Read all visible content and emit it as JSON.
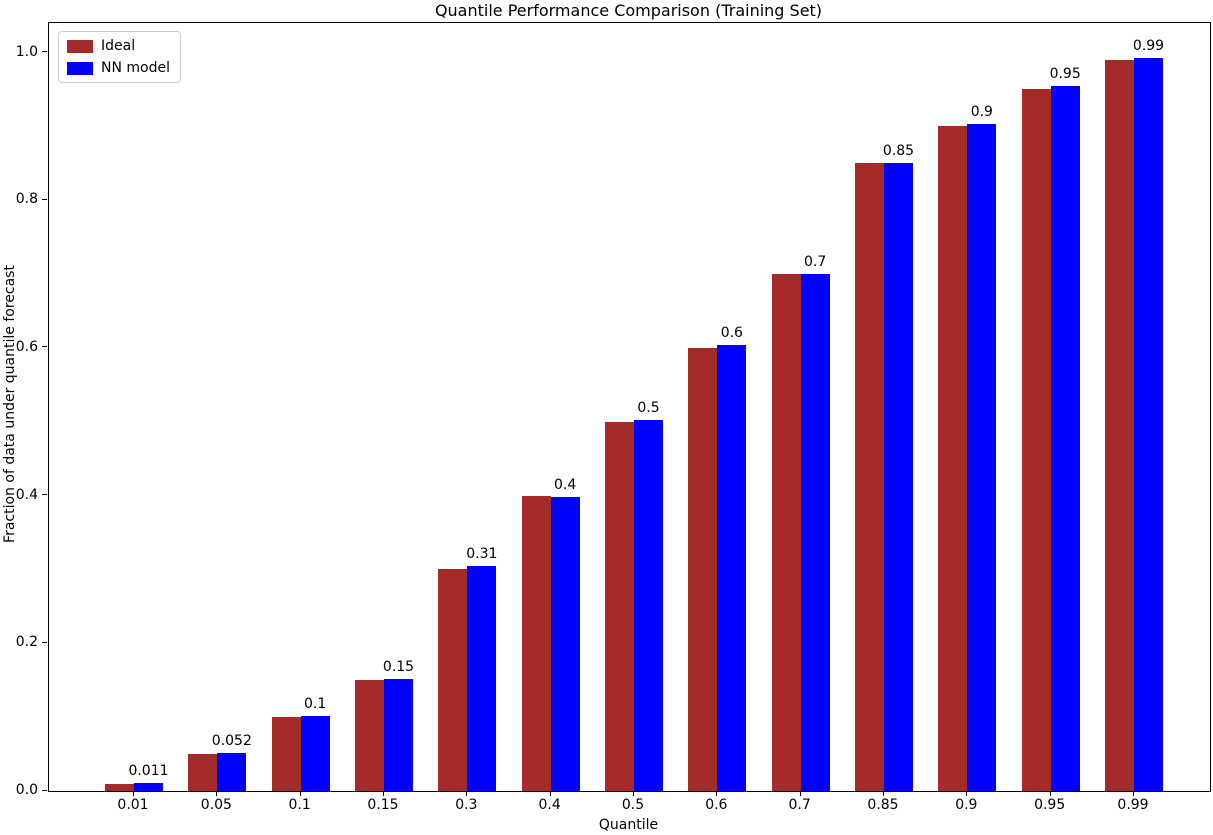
{
  "chart_data": {
    "type": "bar",
    "title": "Quantile Performance Comparison (Training Set)",
    "xlabel": "Quantile",
    "ylabel": "Fraction of data under quantile forecast",
    "categories": [
      "0.01",
      "0.05",
      "0.1",
      "0.15",
      "0.3",
      "0.4",
      "0.5",
      "0.6",
      "0.7",
      "0.85",
      "0.9",
      "0.95",
      "0.99"
    ],
    "series": [
      {
        "name": "Ideal",
        "color": "#a52a2a",
        "values": [
          0.01,
          0.05,
          0.1,
          0.15,
          0.3,
          0.4,
          0.5,
          0.6,
          0.7,
          0.85,
          0.9,
          0.95,
          0.99
        ]
      },
      {
        "name": "NN model",
        "color": "#0000ff",
        "values": [
          0.011,
          0.052,
          0.102,
          0.152,
          0.305,
          0.398,
          0.503,
          0.604,
          0.7,
          0.851,
          0.903,
          0.955,
          0.993
        ]
      }
    ],
    "bar_labels": [
      "0.011",
      "0.052",
      "0.1",
      "0.15",
      "0.31",
      "0.4",
      "0.5",
      "0.6",
      "0.7",
      "0.85",
      "0.9",
      "0.95",
      "0.99"
    ],
    "yticks": [
      0.0,
      0.2,
      0.4,
      0.6,
      0.8,
      1.0
    ],
    "ytick_labels": [
      "0.0",
      "0.2",
      "0.4",
      "0.6",
      "0.8",
      "1.0"
    ],
    "ylim": [
      0,
      1.04
    ],
    "grid": false,
    "legend_position": "upper-left",
    "text_color": "#000000",
    "spine_color": "#000000"
  }
}
